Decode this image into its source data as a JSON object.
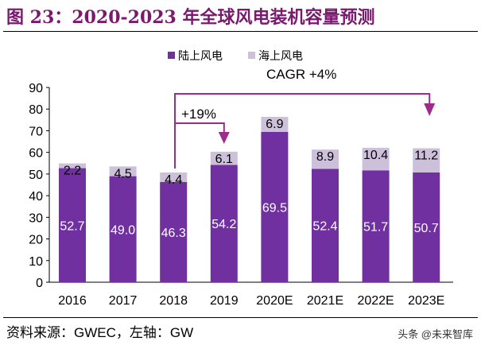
{
  "title": "图 23：2020-2023 年全球风电装机容量预测",
  "source": "资料来源：GWEC，左轴：GW",
  "watermark": "头条 @未来智库",
  "chart_data": {
    "type": "bar",
    "stacked": true,
    "categories": [
      "2016",
      "2017",
      "2018",
      "2019",
      "2020E",
      "2021E",
      "2022E",
      "2023E"
    ],
    "series": [
      {
        "name": "陆上风电",
        "color": "#7030a0",
        "values": [
          52.7,
          49.0,
          46.3,
          54.2,
          69.5,
          52.4,
          51.7,
          50.7
        ]
      },
      {
        "name": "海上风电",
        "color": "#ccc0da",
        "values": [
          2.2,
          4.5,
          4.4,
          6.1,
          6.9,
          8.9,
          10.4,
          11.2
        ]
      }
    ],
    "value_labels": {
      "陆上风电": [
        "52.7",
        "49.0",
        "46.3",
        "54.2",
        "69.5",
        "52.4",
        "51.7",
        "50.7"
      ],
      "海上风电": [
        "2.2",
        "4.5",
        "4.4",
        "6.1",
        "6.9",
        "8.9",
        "10.4",
        "11.2"
      ]
    },
    "ylim": [
      0,
      90
    ],
    "yticks": [
      0,
      10,
      20,
      30,
      40,
      50,
      60,
      70,
      80,
      90
    ],
    "legend": "top",
    "annotations": [
      {
        "text": "+19%",
        "from": "2018",
        "to": "2019"
      },
      {
        "text": "CAGR +4%",
        "from": "2018",
        "to": "2023E"
      }
    ],
    "annotation_color": "#9b2c8e"
  }
}
